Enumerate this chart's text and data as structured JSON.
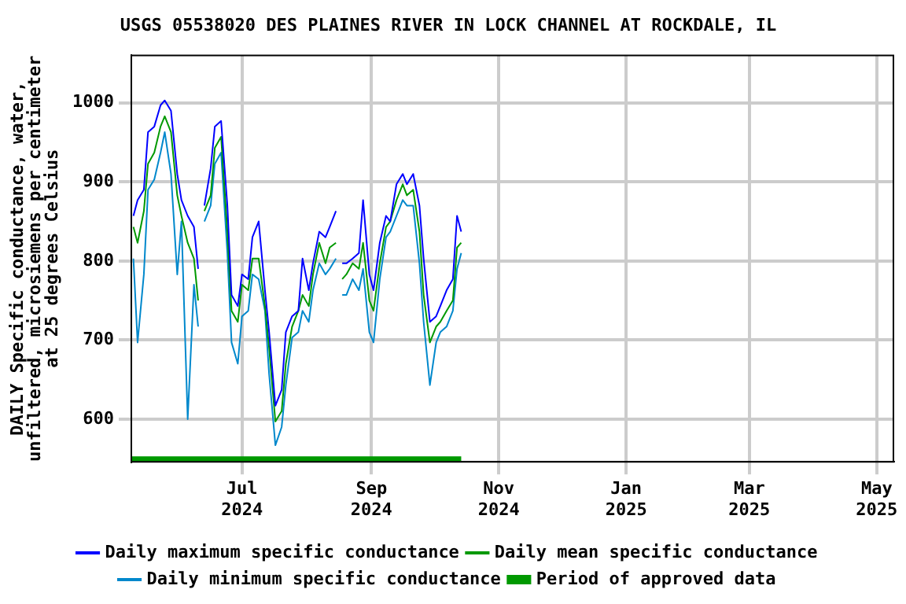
{
  "chart_data": {
    "type": "line",
    "title": "USGS 05538020 DES PLAINES RIVER IN LOCK CHANNEL AT ROCKDALE, IL",
    "ylabel": "DAILY Specific conductance, water,\nunfiltered, microsiemens per centimeter\nat 25 degrees Celsius",
    "x": [
      "2024-05-10",
      "2024-05-12",
      "2024-05-15",
      "2024-05-17",
      "2024-05-20",
      "2024-05-23",
      "2024-05-25",
      "2024-05-28",
      "2024-05-31",
      "2024-06-02",
      "2024-06-05",
      "2024-06-08",
      "2024-06-10",
      "2024-06-11",
      "2024-06-13",
      "2024-06-16",
      "2024-06-18",
      "2024-06-21",
      "2024-06-24",
      "2024-06-26",
      "2024-06-29",
      "2024-07-01",
      "2024-07-04",
      "2024-07-06",
      "2024-07-09",
      "2024-07-12",
      "2024-07-14",
      "2024-07-17",
      "2024-07-20",
      "2024-07-22",
      "2024-07-25",
      "2024-07-28",
      "2024-07-30",
      "2024-08-02",
      "2024-08-04",
      "2024-08-07",
      "2024-08-10",
      "2024-08-12",
      "2024-08-15",
      "2024-08-16",
      "2024-08-18",
      "2024-08-20",
      "2024-08-23",
      "2024-08-26",
      "2024-08-28",
      "2024-08-31",
      "2024-09-02",
      "2024-09-05",
      "2024-09-08",
      "2024-09-10",
      "2024-09-13",
      "2024-09-16",
      "2024-09-18",
      "2024-09-21",
      "2024-09-24",
      "2024-09-26",
      "2024-09-29",
      "2024-10-02",
      "2024-10-04",
      "2024-10-07",
      "2024-10-10",
      "2024-10-12",
      "2024-10-14"
    ],
    "series": [
      {
        "name": "Daily maximum specific conductance",
        "color": "#0000ff",
        "values": [
          857,
          877,
          890,
          963,
          970,
          997,
          1003,
          990,
          910,
          877,
          857,
          843,
          790,
          null,
          870,
          917,
          970,
          977,
          870,
          757,
          743,
          783,
          777,
          830,
          850,
          763,
          710,
          617,
          637,
          710,
          730,
          737,
          803,
          763,
          797,
          837,
          830,
          843,
          863,
          null,
          797,
          797,
          803,
          810,
          877,
          783,
          763,
          823,
          857,
          850,
          897,
          910,
          897,
          910,
          870,
          803,
          723,
          730,
          743,
          763,
          777,
          857,
          837
        ]
      },
      {
        "name": "Daily mean specific conductance",
        "color": "#009900",
        "values": [
          843,
          823,
          863,
          923,
          937,
          970,
          983,
          963,
          883,
          857,
          823,
          803,
          750,
          null,
          863,
          883,
          943,
          957,
          837,
          737,
          723,
          770,
          763,
          803,
          803,
          743,
          690,
          597,
          610,
          670,
          717,
          737,
          757,
          743,
          783,
          823,
          797,
          817,
          823,
          null,
          777,
          783,
          797,
          790,
          823,
          750,
          737,
          797,
          843,
          850,
          877,
          897,
          883,
          890,
          837,
          757,
          697,
          717,
          723,
          737,
          750,
          817,
          823
        ]
      },
      {
        "name": "Daily minimum specific conductance",
        "color": "#0088cc",
        "values": [
          803,
          697,
          783,
          890,
          903,
          937,
          963,
          910,
          783,
          850,
          600,
          770,
          717,
          null,
          850,
          870,
          923,
          937,
          810,
          697,
          670,
          730,
          737,
          783,
          777,
          737,
          657,
          567,
          590,
          643,
          703,
          710,
          737,
          723,
          763,
          797,
          783,
          790,
          803,
          null,
          757,
          757,
          777,
          763,
          790,
          710,
          697,
          777,
          830,
          837,
          857,
          877,
          870,
          870,
          797,
          723,
          643,
          697,
          710,
          717,
          737,
          790,
          810
        ]
      },
      {
        "name": "Period of approved data",
        "color": "#009900",
        "x": [
          "2024-05-09",
          "2024-10-14"
        ],
        "values": [
          548,
          548
        ]
      }
    ],
    "xlim": [
      "2024-05-09",
      "2025-05-09"
    ],
    "xticks": [
      {
        "value": "2024-07-01",
        "label": "Jul\n2024"
      },
      {
        "value": "2024-09-01",
        "label": "Sep\n2024"
      },
      {
        "value": "2024-11-01",
        "label": "Nov\n2024"
      },
      {
        "value": "2025-01-01",
        "label": "Jan\n2025"
      },
      {
        "value": "2025-03-01",
        "label": "Mar\n2025"
      },
      {
        "value": "2025-05-01",
        "label": "May\n2025"
      }
    ],
    "ylim": [
      546,
      1060
    ],
    "yticks": [
      600,
      700,
      800,
      900,
      1000
    ],
    "grid": true,
    "legend": "bottom"
  }
}
